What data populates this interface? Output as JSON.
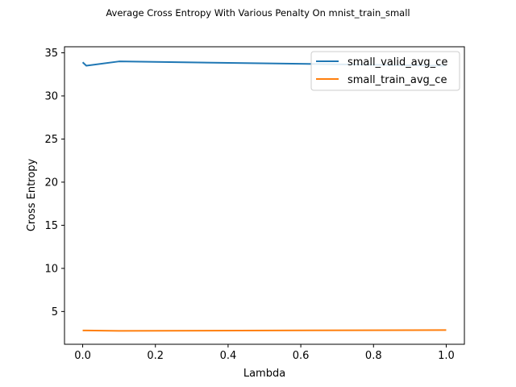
{
  "chart_data": {
    "type": "line",
    "title": "Average Cross Entropy With Various Penalty On mnist_train_small",
    "xlabel": "Lambda",
    "ylabel": "Cross Entropy",
    "xlim": [
      -0.05,
      1.05
    ],
    "ylim": [
      1.2,
      35.7
    ],
    "xticks": [
      0.0,
      0.2,
      0.4,
      0.6,
      0.8,
      1.0
    ],
    "xtick_labels": [
      "0.0",
      "0.2",
      "0.4",
      "0.6",
      "0.8",
      "1.0"
    ],
    "yticks": [
      5,
      10,
      15,
      20,
      25,
      30,
      35
    ],
    "ytick_labels": [
      "5",
      "10",
      "15",
      "20",
      "25",
      "30",
      "35"
    ],
    "grid": false,
    "legend_position": "top-right",
    "series": [
      {
        "name": "small_valid_avg_ce",
        "color": "#1f77b4",
        "x": [
          0.0,
          0.01,
          0.1,
          1.0
        ],
        "y": [
          33.9,
          33.5,
          34.0,
          33.5
        ]
      },
      {
        "name": "small_train_avg_ce",
        "color": "#ff7f0e",
        "x": [
          0.0,
          0.01,
          0.1,
          1.0
        ],
        "y": [
          2.8,
          2.8,
          2.75,
          2.85
        ]
      }
    ]
  }
}
